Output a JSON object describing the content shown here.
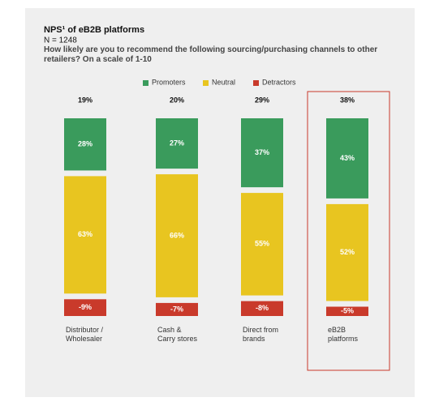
{
  "chart_data": {
    "type": "stacked_bar",
    "title": "NPS¹ of eB2B platforms",
    "subtitle": "N = 1248",
    "question": "How likely are you to recommend the following sourcing/purchasing channels to other retailers? On a scale of 1-10",
    "categories": [
      "Distributor / Wholesaler",
      "Cash & Carry stores",
      "Direct from brands",
      "eB2B platforms"
    ],
    "nps": [
      19,
      20,
      29,
      38
    ],
    "nps_labels": [
      "19%",
      "20%",
      "29%",
      "38%"
    ],
    "series": [
      {
        "name": "Promoters",
        "color": "#3a9b5c",
        "values": [
          28,
          27,
          37,
          43
        ],
        "value_labels": [
          "28%",
          "27%",
          "37%",
          "43%"
        ]
      },
      {
        "name": "Neutral",
        "color": "#e8c520",
        "values": [
          63,
          66,
          55,
          52
        ],
        "value_labels": [
          "63%",
          "66%",
          "55%",
          "52%"
        ]
      },
      {
        "name": "Detractors",
        "color": "#c93a2b",
        "values": [
          -9,
          -7,
          -8,
          -5
        ],
        "value_labels": [
          "-9%",
          "-7%",
          "-8%",
          "-5%"
        ]
      }
    ]
  }
}
